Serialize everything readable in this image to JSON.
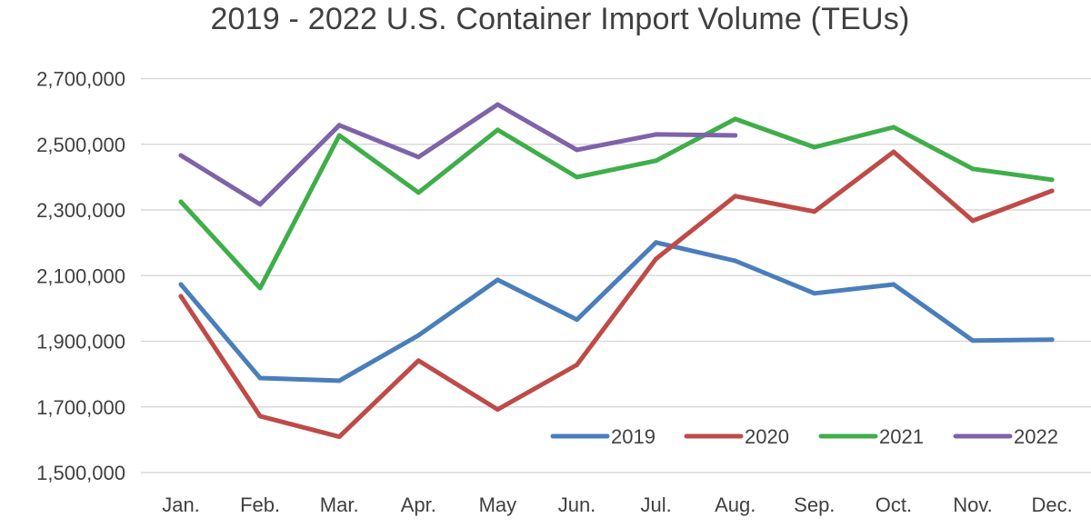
{
  "chart_data": {
    "type": "line",
    "title": "2019 - 2022 U.S. Container Import Volume (TEUs)",
    "xlabel": "",
    "ylabel": "",
    "categories": [
      "Jan.",
      "Feb.",
      "Mar.",
      "Apr.",
      "May",
      "Jun.",
      "Jul.",
      "Aug.",
      "Sep.",
      "Oct.",
      "Nov.",
      "Dec."
    ],
    "ylim": [
      1500000,
      2700000
    ],
    "yticks": [
      1500000,
      1700000,
      1900000,
      2100000,
      2300000,
      2500000,
      2700000
    ],
    "ytick_labels": [
      "1,500,000",
      "1,700,000",
      "1,900,000",
      "2,100,000",
      "2,300,000",
      "2,500,000",
      "2,700,000"
    ],
    "grid": true,
    "legend_position": "bottom-right",
    "series": [
      {
        "name": "2019",
        "color": "#4a7ebb",
        "values": [
          2073000,
          1788000,
          1780000,
          1918000,
          2087000,
          1966000,
          2201000,
          2145000,
          2046000,
          2073000,
          1902000,
          1905000
        ]
      },
      {
        "name": "2020",
        "color": "#be4b48",
        "values": [
          2037000,
          1672000,
          1609000,
          1841000,
          1692000,
          1828000,
          2151000,
          2342000,
          2295000,
          2477000,
          2267000,
          2358000
        ]
      },
      {
        "name": "2021",
        "color": "#3fae49",
        "values": [
          2325000,
          2062000,
          2527000,
          2353000,
          2544000,
          2400000,
          2450000,
          2577000,
          2491000,
          2552000,
          2425000,
          2392000
        ]
      },
      {
        "name": "2022",
        "color": "#7f63a8",
        "values": [
          2466000,
          2317000,
          2558000,
          2461000,
          2621000,
          2483000,
          2530000,
          2527000
        ]
      }
    ]
  }
}
